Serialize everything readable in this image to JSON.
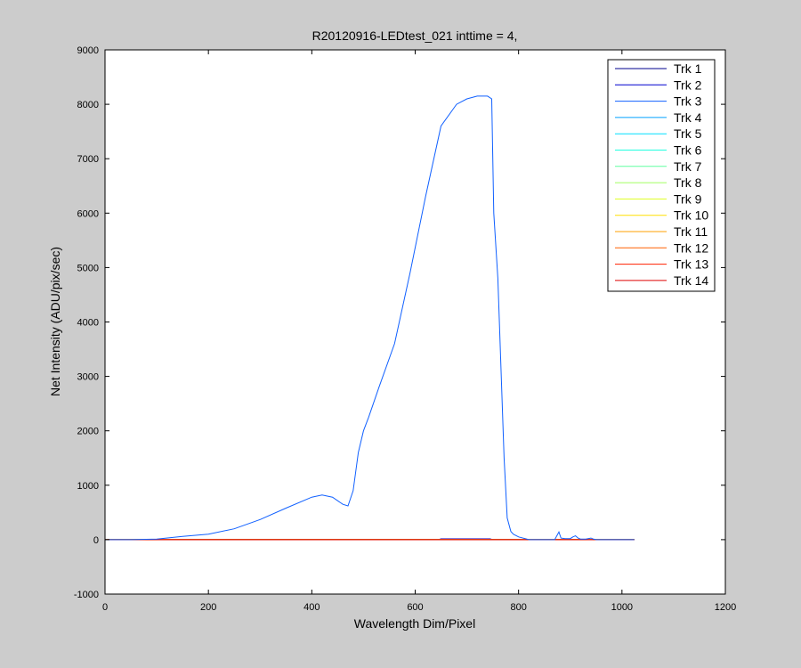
{
  "chart_data": {
    "type": "line",
    "title": "R20120916-LEDtest_021 inttime = 4,",
    "xlabel": "Wavelength Dim/Pixel",
    "ylabel": "Net Intensity (ADU/pix/sec)",
    "xlim": [
      0,
      1200
    ],
    "ylim": [
      -1000,
      9000
    ],
    "xticks": [
      "0",
      "200",
      "400",
      "600",
      "800",
      "1000",
      "1200"
    ],
    "yticks": [
      "-1000",
      "0",
      "1000",
      "2000",
      "3000",
      "4000",
      "5000",
      "6000",
      "7000",
      "8000",
      "9000"
    ],
    "grid": false,
    "legend_position": "top-right",
    "series": [
      {
        "name": "Trk 1",
        "color": "#00008f",
        "x": [
          0,
          1024
        ],
        "y": [
          0,
          0
        ]
      },
      {
        "name": "Trk 2",
        "color": "#0000cf",
        "x": [
          0,
          645,
          650,
          745,
          750,
          1024
        ],
        "y": [
          0,
          0,
          15,
          15,
          0,
          0
        ]
      },
      {
        "name": "Trk 3",
        "color": "#1060ff",
        "x": [
          0,
          50,
          100,
          150,
          200,
          250,
          300,
          350,
          400,
          420,
          440,
          460,
          470,
          480,
          490,
          500,
          510,
          530,
          560,
          590,
          620,
          650,
          680,
          700,
          720,
          740,
          748,
          752,
          760,
          772,
          778,
          785,
          790,
          800,
          820,
          830,
          870,
          878,
          882,
          890,
          900,
          905,
          910,
          915,
          920,
          930,
          940,
          945,
          950,
          1024
        ],
        "y": [
          0,
          0,
          10,
          60,
          100,
          200,
          370,
          580,
          780,
          820,
          780,
          650,
          620,
          900,
          1600,
          2000,
          2250,
          2800,
          3600,
          4900,
          6300,
          7600,
          8000,
          8100,
          8150,
          8150,
          8100,
          6000,
          4800,
          1500,
          400,
          150,
          100,
          50,
          0,
          0,
          0,
          140,
          30,
          20,
          20,
          50,
          70,
          30,
          10,
          10,
          30,
          10,
          0,
          0
        ]
      },
      {
        "name": "Trk 4",
        "color": "#00a0ff",
        "x": [
          0,
          1024
        ],
        "y": [
          0,
          0
        ]
      },
      {
        "name": "Trk 5",
        "color": "#00dfff",
        "x": [
          0,
          1024
        ],
        "y": [
          0,
          0
        ]
      },
      {
        "name": "Trk 6",
        "color": "#20ffdf",
        "x": [
          0,
          1024
        ],
        "y": [
          0,
          0
        ]
      },
      {
        "name": "Trk 7",
        "color": "#60ffa0",
        "x": [
          0,
          1024
        ],
        "y": [
          0,
          0
        ]
      },
      {
        "name": "Trk 8",
        "color": "#a0ff60",
        "x": [
          0,
          1024
        ],
        "y": [
          0,
          0
        ]
      },
      {
        "name": "Trk 9",
        "color": "#dfff20",
        "x": [
          0,
          1024
        ],
        "y": [
          0,
          0
        ]
      },
      {
        "name": "Trk 10",
        "color": "#ffdf00",
        "x": [
          0,
          1024
        ],
        "y": [
          0,
          0
        ]
      },
      {
        "name": "Trk 11",
        "color": "#ffa000",
        "x": [
          0,
          1024
        ],
        "y": [
          0,
          0
        ]
      },
      {
        "name": "Trk 12",
        "color": "#ff6000",
        "x": [
          0,
          1024
        ],
        "y": [
          0,
          0
        ]
      },
      {
        "name": "Trk 13",
        "color": "#ff2000",
        "x": [
          0,
          1024
        ],
        "y": [
          0,
          0
        ]
      },
      {
        "name": "Trk 14",
        "color": "#df0000",
        "x": [
          0,
          1024
        ],
        "y": [
          0,
          0
        ]
      }
    ]
  }
}
